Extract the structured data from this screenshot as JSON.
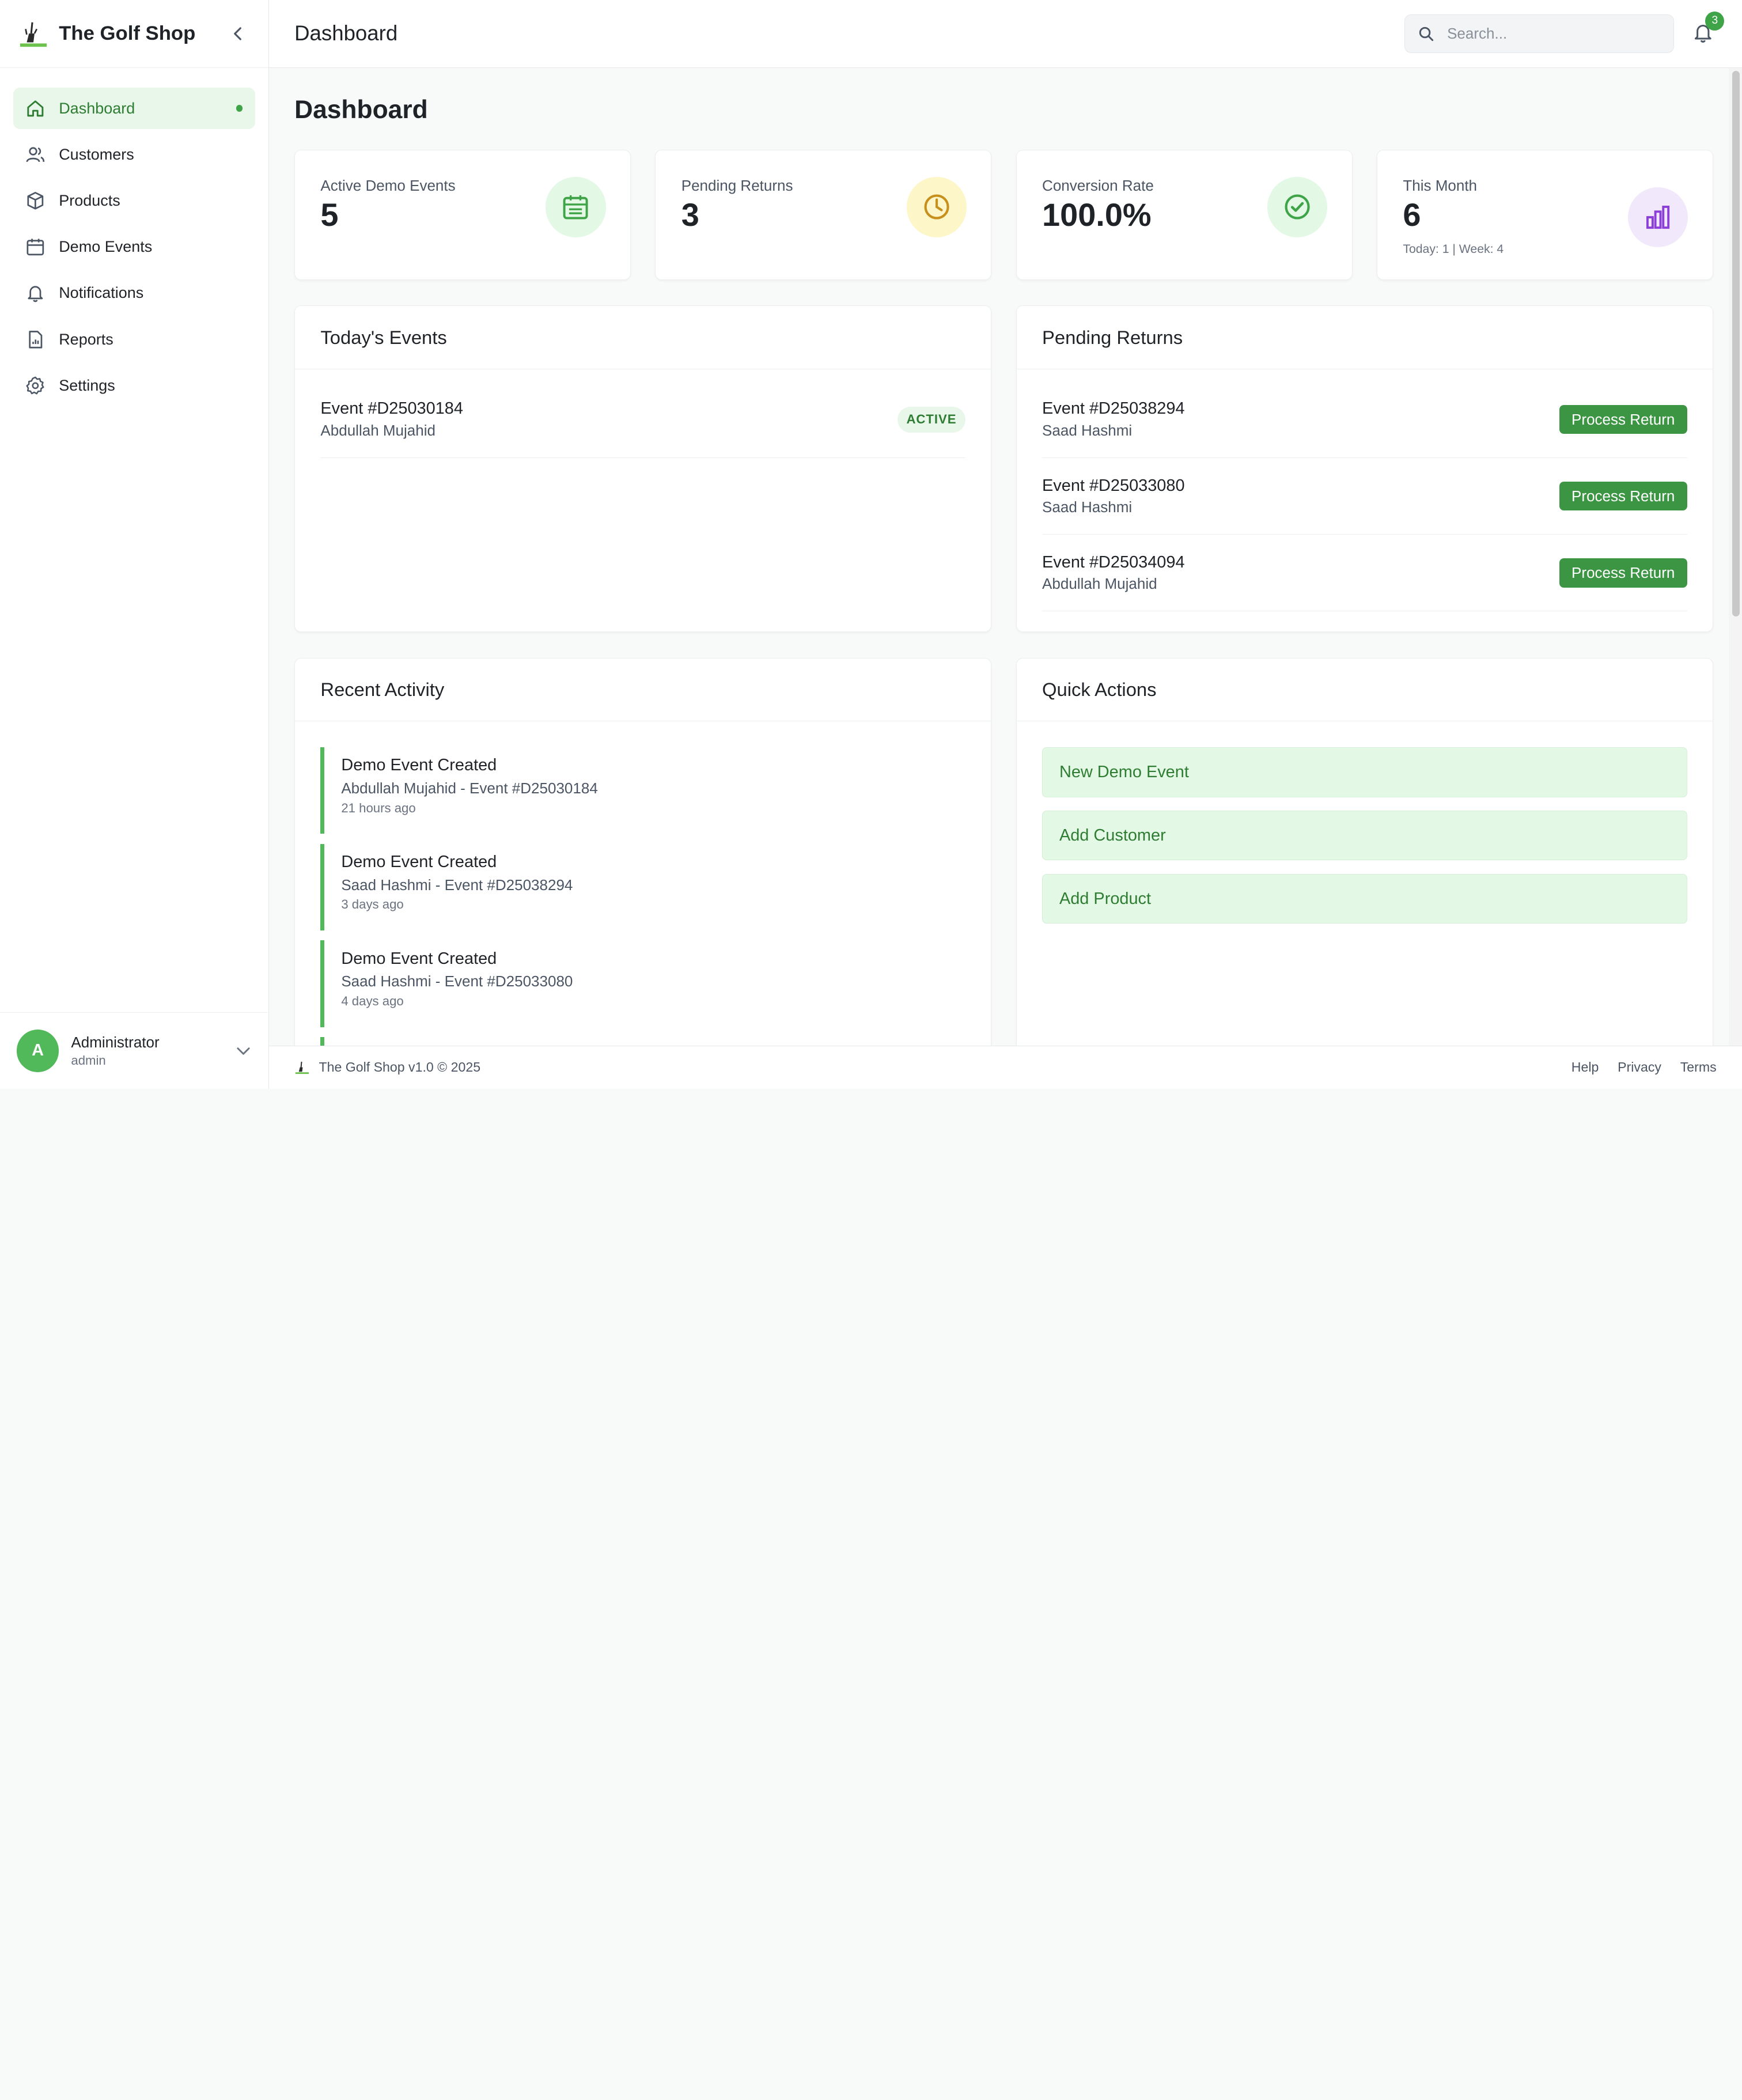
{
  "brand": {
    "name": "The Golf Shop"
  },
  "sidebar": {
    "items": [
      {
        "label": "Dashboard",
        "icon": "home-icon",
        "active": true
      },
      {
        "label": "Customers",
        "icon": "users-icon"
      },
      {
        "label": "Products",
        "icon": "box-icon"
      },
      {
        "label": "Demo Events",
        "icon": "calendar-icon"
      },
      {
        "label": "Notifications",
        "icon": "bell-icon"
      },
      {
        "label": "Reports",
        "icon": "report-icon"
      },
      {
        "label": "Settings",
        "icon": "gear-icon"
      }
    ],
    "user": {
      "initial": "A",
      "name": "Administrator",
      "role": "admin"
    }
  },
  "header": {
    "title": "Dashboard",
    "search_placeholder": "Search...",
    "notification_count": "3"
  },
  "page": {
    "title": "Dashboard"
  },
  "stats": [
    {
      "label": "Active Demo Events",
      "value": "5",
      "icon": "calendar-icon",
      "color": "#e3f8e5"
    },
    {
      "label": "Pending Returns",
      "value": "3",
      "icon": "clock-icon",
      "color": "#fdf6c8"
    },
    {
      "label": "Conversion Rate",
      "value": "100.0%",
      "icon": "check-circle-icon",
      "color": "#e3f8e5"
    },
    {
      "label": "This Month",
      "value": "6",
      "sub": "Today: 1 | Week: 4",
      "icon": "bar-chart-icon",
      "color": "#f2e8fb"
    }
  ],
  "todays_events": {
    "title": "Today's Events",
    "items": [
      {
        "id": "Event #D25030184",
        "name": "Abdullah Mujahid",
        "status": "ACTIVE"
      }
    ]
  },
  "pending_returns": {
    "title": "Pending Returns",
    "button_label": "Process Return",
    "items": [
      {
        "id": "Event #D25038294",
        "name": "Saad Hashmi"
      },
      {
        "id": "Event #D25033080",
        "name": "Saad Hashmi"
      },
      {
        "id": "Event #D25034094",
        "name": "Abdullah Mujahid"
      }
    ]
  },
  "recent_activity": {
    "title": "Recent Activity",
    "items": [
      {
        "title": "Demo Event Created",
        "detail": "Abdullah Mujahid - Event #D25030184",
        "time": "21 hours ago"
      },
      {
        "title": "Demo Event Created",
        "detail": "Saad Hashmi - Event #D25038294",
        "time": "3 days ago"
      },
      {
        "title": "Demo Event Created",
        "detail": "Saad Hashmi - Event #D25033080",
        "time": "4 days ago"
      }
    ]
  },
  "quick_actions": {
    "title": "Quick Actions",
    "items": [
      "New Demo Event",
      "Add Customer",
      "Add Product"
    ]
  },
  "footer": {
    "text": "The Golf Shop v1.0 © 2025",
    "links": [
      "Help",
      "Privacy",
      "Terms"
    ]
  },
  "colors": {
    "accent": "#3fa447",
    "accent_dark": "#2e7d32",
    "button": "#3b9543",
    "pending_icon": "#c7901c",
    "month_icon": "#8b3fd6"
  }
}
